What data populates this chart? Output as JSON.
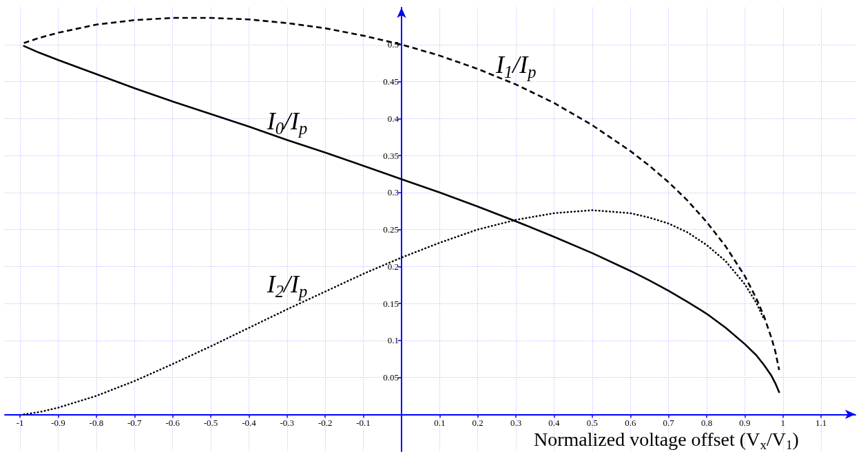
{
  "chart_data": {
    "type": "line",
    "xlabel": "Normalized voltage offset (V$_{x}$/V$_{1}$)",
    "x": [
      -0.99,
      -0.95,
      -0.9,
      -0.8,
      -0.7,
      -0.6,
      -0.5,
      -0.4,
      -0.3,
      -0.2,
      -0.1,
      0,
      0.1,
      0.2,
      0.3,
      0.4,
      0.5,
      0.6,
      0.65,
      0.7,
      0.75,
      0.8,
      0.85,
      0.9,
      0.93,
      0.95,
      0.97,
      0.98,
      0.99
    ],
    "series": [
      {
        "name": "I$_{0}$/I$_{p}$",
        "color": "#000000",
        "line_style": "solid",
        "values": [
          0.498,
          0.489,
          0.479,
          0.46,
          0.441,
          0.423,
          0.406,
          0.389,
          0.371,
          0.354,
          0.336,
          0.318,
          0.3,
          0.281,
          0.261,
          0.24,
          0.218,
          0.194,
          0.181,
          0.167,
          0.152,
          0.136,
          0.117,
          0.095,
          0.08,
          0.067,
          0.052,
          0.042,
          0.03
        ]
      },
      {
        "name": "I$_{1}$/I$_{p}$",
        "color": "#000000",
        "line_style": "dashed",
        "values": [
          0.502,
          0.509,
          0.516,
          0.527,
          0.533,
          0.536,
          0.536,
          0.534,
          0.529,
          0.522,
          0.512,
          0.5,
          0.485,
          0.467,
          0.446,
          0.421,
          0.391,
          0.356,
          0.336,
          0.314,
          0.289,
          0.26,
          0.227,
          0.187,
          0.157,
          0.133,
          0.103,
          0.085,
          0.06
        ]
      },
      {
        "name": "I$_{2}$/I$_{p}$",
        "color": "#000000",
        "line_style": "dotted",
        "values": [
          0,
          0.003,
          0.009,
          0.025,
          0.045,
          0.068,
          0.092,
          0.117,
          0.142,
          0.166,
          0.19,
          0.212,
          0.232,
          0.25,
          0.263,
          0.272,
          0.276,
          0.272,
          0.266,
          0.258,
          0.246,
          0.229,
          0.207,
          0.176,
          0.151,
          0.129,
          null,
          null,
          null
        ]
      }
    ],
    "xlim": [
      -1.04,
      1.19
    ],
    "ylim": [
      -0.05,
      0.55
    ],
    "xticks": [
      -1,
      -0.9,
      -0.8,
      -0.7,
      -0.6,
      -0.5,
      -0.4,
      -0.3,
      -0.2,
      -0.1,
      0.1,
      0.2,
      0.3,
      0.4,
      0.5,
      0.6,
      0.7,
      0.8,
      0.9,
      1,
      1.1
    ],
    "yticks": [
      0.05,
      0.1,
      0.15,
      0.2,
      0.25,
      0.3,
      0.35,
      0.4,
      0.45,
      0.5
    ],
    "grid": true,
    "marker": "none"
  }
}
